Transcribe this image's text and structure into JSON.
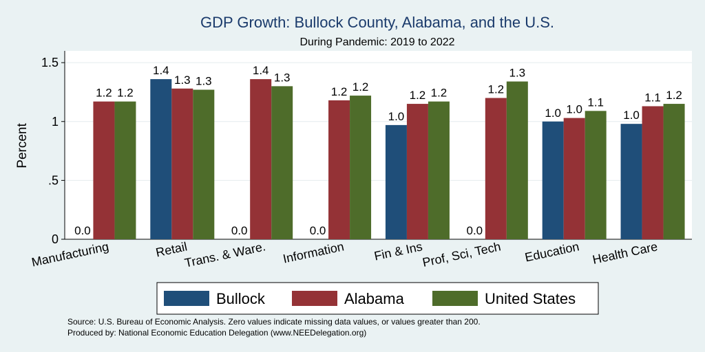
{
  "chart_data": {
    "type": "bar",
    "title": "GDP Growth: Bullock County, Alabama, and the U.S.",
    "subtitle": "During Pandemic: 2019 to 2022",
    "ylabel": "Percent",
    "xlabel": "",
    "ylim": [
      0,
      1.6
    ],
    "yticks": [
      0,
      0.5,
      1,
      1.5
    ],
    "ytick_labels": [
      "0",
      ".5",
      "1",
      "1.5"
    ],
    "grid": true,
    "legend_position": "bottom",
    "categories": [
      "Manufacturing",
      "Retail",
      "Trans. & Ware.",
      "Information",
      "Fin & Ins",
      "Prof, Sci, Tech",
      "Education",
      "Health Care"
    ],
    "series": [
      {
        "name": "Bullock",
        "color": "#1f4e79",
        "values": [
          0,
          1.36,
          0,
          0,
          0.97,
          0,
          1.0,
          0.98
        ],
        "labels": [
          "0.0",
          "1.4",
          "0.0",
          "0.0",
          "1.0",
          "0.0",
          "1.0",
          "1.0"
        ]
      },
      {
        "name": "Alabama",
        "color": "#943236",
        "values": [
          1.17,
          1.28,
          1.36,
          1.18,
          1.15,
          1.2,
          1.03,
          1.13
        ],
        "labels": [
          "1.2",
          "1.3",
          "1.4",
          "1.2",
          "1.2",
          "1.2",
          "1.0",
          "1.1"
        ]
      },
      {
        "name": "United States",
        "color": "#4e6c2a",
        "values": [
          1.17,
          1.27,
          1.3,
          1.22,
          1.17,
          1.34,
          1.09,
          1.15
        ],
        "labels": [
          "1.2",
          "1.3",
          "1.3",
          "1.2",
          "1.2",
          "1.3",
          "1.1",
          "1.2"
        ]
      }
    ],
    "notes": [
      "Source: U.S. Bureau of Economic Analysis. Zero values indicate missing data values, or values greater than 200.",
      "Produced by: National Economic Education Delegation (www.NEEDelegation.org)"
    ]
  }
}
